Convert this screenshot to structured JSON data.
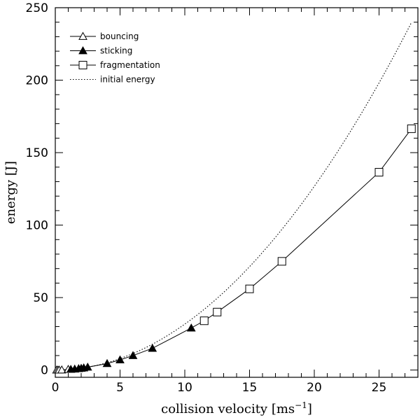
{
  "chart_data": {
    "type": "line",
    "title": "",
    "xlabel": "collision velocity [ms",
    "xlabel_sup": "−1",
    "xlabel_end": "]",
    "ylabel": "energy [J]",
    "xlim": [
      0,
      28
    ],
    "ylim": [
      -5,
      250
    ],
    "xticks": [
      0,
      5,
      10,
      15,
      20,
      25
    ],
    "yticks": [
      0,
      50,
      100,
      150,
      200,
      250
    ],
    "legend_position": "top-left",
    "series": [
      {
        "name": "bouncing",
        "marker": "open-triangle",
        "line": "solid",
        "points": [
          [
            0.1,
            0.0
          ],
          [
            0.2,
            0.0
          ],
          [
            0.3,
            0.0
          ],
          [
            0.5,
            0.1
          ],
          [
            1.0,
            0.5
          ]
        ]
      },
      {
        "name": "sticking",
        "marker": "filled-triangle",
        "line": "solid",
        "points": [
          [
            1.2,
            0.5
          ],
          [
            1.5,
            0.7
          ],
          [
            1.8,
            1.0
          ],
          [
            2.0,
            1.2
          ],
          [
            2.2,
            1.5
          ],
          [
            2.5,
            2.0
          ],
          [
            4.0,
            4.5
          ],
          [
            5.0,
            7.0
          ],
          [
            6.0,
            10.0
          ],
          [
            7.5,
            15.0
          ],
          [
            10.5,
            29.0
          ]
        ]
      },
      {
        "name": "fragmentation",
        "marker": "open-square",
        "line": "solid",
        "points": [
          [
            11.5,
            34.0
          ],
          [
            12.5,
            40.0
          ],
          [
            15.0,
            56.0
          ],
          [
            17.5,
            75.0
          ],
          [
            25.0,
            136.5
          ],
          [
            27.5,
            166.5
          ]
        ]
      },
      {
        "name": "initial energy",
        "marker": "none",
        "line": "dotted",
        "formula": "E = 0.317 * v^2",
        "coefficient": 0.317
      }
    ]
  }
}
